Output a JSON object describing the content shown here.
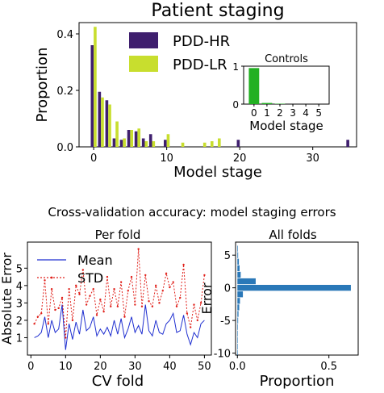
{
  "colors": {
    "pdd_hr": "#3f1f6e",
    "pdd_lr": "#c8de2e",
    "controls": "#22b022",
    "mean_line": "#1f2fd0",
    "std_line": "#e0201a",
    "hist_bar": "#2a78b8"
  },
  "suptitle": "Cross-validation accuracy: model staging errors",
  "chart_data": [
    {
      "id": "patient_staging",
      "type": "bar",
      "title": "Patient staging",
      "xlabel": "Model stage",
      "ylabel": "Proportion",
      "xlim": [
        -2,
        36
      ],
      "ylim": [
        0,
        0.44
      ],
      "xticks": [
        0,
        10,
        20,
        30
      ],
      "yticks": [
        0.0,
        0.2,
        0.4
      ],
      "ytick_labels": [
        "0.0",
        "0.2",
        "0.4"
      ],
      "legend": "top-left",
      "series": [
        {
          "name": "PDD-HR",
          "points": [
            [
              0,
              0.36
            ],
            [
              1,
              0.195
            ],
            [
              2,
              0.165
            ],
            [
              3,
              0.03
            ],
            [
              4,
              0.025
            ],
            [
              5,
              0.06
            ],
            [
              6,
              0.055
            ],
            [
              7,
              0.03
            ],
            [
              8,
              0.045
            ],
            [
              10,
              0.025
            ],
            [
              20,
              0.025
            ],
            [
              35,
              0.025
            ]
          ]
        },
        {
          "name": "PDD-LR",
          "points": [
            [
              0,
              0.425
            ],
            [
              1,
              0.175
            ],
            [
              2,
              0.15
            ],
            [
              3,
              0.09
            ],
            [
              4,
              0.03
            ],
            [
              5,
              0.06
            ],
            [
              6,
              0.065
            ],
            [
              7,
              0.02
            ],
            [
              8,
              0.02
            ],
            [
              10,
              0.045
            ],
            [
              12,
              0.015
            ],
            [
              15,
              0.015
            ],
            [
              16,
              0.02
            ],
            [
              17,
              0.03
            ]
          ]
        }
      ]
    },
    {
      "id": "controls_inset",
      "type": "bar",
      "title": "Controls",
      "xlabel": "Model stage",
      "ylabel": "",
      "xlim": [
        -0.8,
        5.8
      ],
      "ylim": [
        0,
        1
      ],
      "xticks": [
        0,
        1,
        2,
        3,
        4,
        5
      ],
      "yticks": [
        0,
        1
      ],
      "categories": [
        0,
        1,
        2,
        3,
        4,
        5
      ],
      "values": [
        0.95,
        0.03,
        0.01,
        0,
        0,
        0
      ]
    },
    {
      "id": "per_fold",
      "type": "line",
      "title": "Per fold",
      "xlabel": "CV fold",
      "ylabel": "Absolute Error",
      "xlim": [
        -1,
        52
      ],
      "ylim": [
        0,
        6.5
      ],
      "xticks": [
        0,
        10,
        20,
        30,
        40,
        50
      ],
      "yticks": [
        1,
        2,
        3,
        4,
        5
      ],
      "legend": "top-left",
      "x": [
        1,
        2,
        3,
        4,
        5,
        6,
        7,
        8,
        9,
        10,
        11,
        12,
        13,
        14,
        15,
        16,
        17,
        18,
        19,
        20,
        21,
        22,
        23,
        24,
        25,
        26,
        27,
        28,
        29,
        30,
        31,
        32,
        33,
        34,
        35,
        36,
        37,
        38,
        39,
        40,
        41,
        42,
        43,
        44,
        45,
        46,
        47,
        48,
        49,
        50
      ],
      "series": [
        {
          "name": "Mean",
          "values": [
            1.0,
            1.1,
            1.3,
            2.2,
            1.0,
            2.0,
            1.3,
            1.5,
            2.9,
            0.3,
            1.8,
            0.9,
            1.9,
            1.2,
            2.6,
            1.4,
            1.6,
            2.2,
            1.1,
            1.5,
            1.2,
            1.6,
            1.1,
            2.0,
            1.2,
            2.1,
            1.0,
            1.5,
            2.2,
            1.3,
            1.7,
            1.2,
            2.9,
            1.4,
            1.1,
            2.0,
            1.3,
            1.2,
            1.8,
            2.0,
            2.4,
            1.3,
            1.4,
            2.3,
            1.2,
            0.6,
            1.3,
            1.0,
            1.8,
            2.0
          ]
        },
        {
          "name": "STD",
          "values": [
            1.8,
            2.2,
            2.4,
            4.3,
            1.8,
            3.8,
            2.6,
            2.7,
            3.3,
            1.0,
            3.8,
            2.0,
            4.0,
            3.5,
            4.9,
            2.9,
            3.4,
            3.8,
            2.3,
            3.2,
            2.5,
            4.5,
            2.8,
            3.8,
            2.8,
            4.2,
            2.2,
            3.7,
            4.5,
            2.9,
            6.1,
            2.8,
            4.6,
            3.1,
            2.8,
            4.0,
            3.0,
            3.7,
            4.7,
            3.9,
            4.2,
            2.8,
            3.3,
            5.2,
            2.4,
            1.6,
            2.9,
            2.0,
            3.0,
            4.6
          ]
        }
      ]
    },
    {
      "id": "all_folds",
      "type": "bar",
      "orientation": "horizontal",
      "title": "All folds",
      "xlabel": "Proportion",
      "ylabel": "Error",
      "xlim": [
        -0.01,
        0.66
      ],
      "ylim": [
        -10.3,
        7.0
      ],
      "xticks": [
        0.0,
        0.5
      ],
      "xtick_labels": [
        "0.0",
        "0.5"
      ],
      "yticks": [
        5,
        0,
        -5,
        -10
      ],
      "categories": [
        6,
        5,
        4,
        3,
        2,
        1,
        0,
        -1,
        -2,
        -3,
        -4,
        -5,
        -6,
        -7,
        -8,
        -9,
        -10
      ],
      "values": [
        0.003,
        0.004,
        0.008,
        0.012,
        0.018,
        0.1,
        0.62,
        0.03,
        0.014,
        0.01,
        0.006,
        0.004,
        0.003,
        0.002,
        0.002,
        0.002,
        0.002
      ]
    }
  ]
}
